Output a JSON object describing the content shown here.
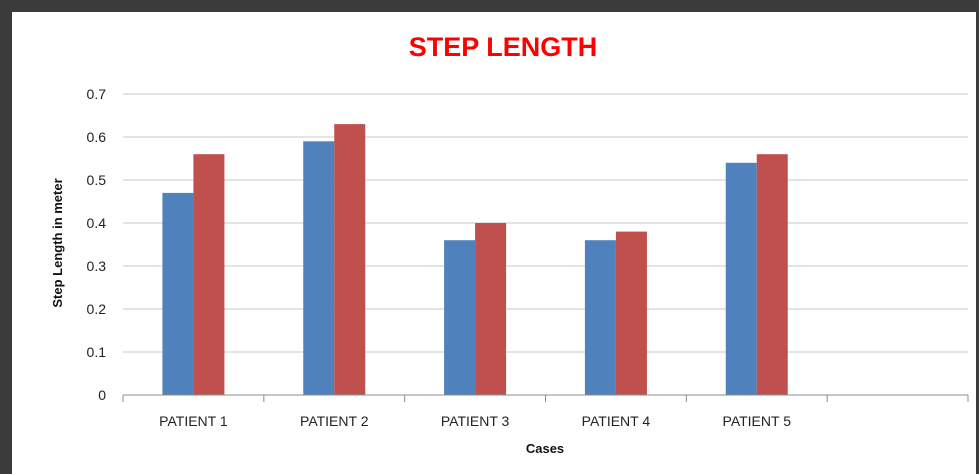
{
  "chart_data": {
    "type": "bar",
    "title": "STEP LENGTH",
    "xlabel": "Cases",
    "ylabel": "Step Length in meter",
    "categories": [
      "PATIENT 1",
      "PATIENT 2",
      "PATIENT 3",
      "PATIENT 4",
      "PATIENT 5",
      ""
    ],
    "series": [
      {
        "values": [
          0.47,
          0.59,
          0.36,
          0.36,
          0.54,
          null
        ],
        "color": "#4f81bd"
      },
      {
        "values": [
          0.56,
          0.63,
          0.4,
          0.38,
          0.56,
          null
        ],
        "color": "#c0504d"
      }
    ],
    "ylim": [
      0,
      0.7
    ],
    "yticks": [
      "0",
      "0.1",
      "0.2",
      "0.3",
      "0.4",
      "0.5",
      "0.6",
      "0.7"
    ],
    "grid": true,
    "title_color": "#ff0000"
  }
}
